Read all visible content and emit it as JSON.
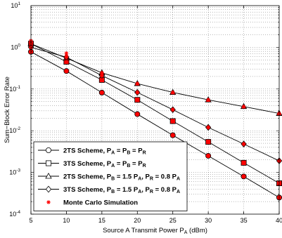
{
  "chart_data": {
    "type": "line",
    "x": [
      5,
      10,
      15,
      20,
      25,
      30,
      35,
      40
    ],
    "xlim": [
      5,
      40
    ],
    "ylim": [
      0.0001,
      10
    ],
    "yscale": "log",
    "xticks": [
      5,
      10,
      15,
      20,
      25,
      30,
      35,
      40
    ],
    "yticks": [
      {
        "value": 0.0001,
        "base": "10",
        "exp": "-4"
      },
      {
        "value": 0.001,
        "base": "10",
        "exp": "-3"
      },
      {
        "value": 0.01,
        "base": "10",
        "exp": "-2"
      },
      {
        "value": 0.1,
        "base": "10",
        "exp": "-1"
      },
      {
        "value": 1,
        "base": "10",
        "exp": "0"
      },
      {
        "value": 10,
        "base": "10",
        "exp": "1"
      }
    ],
    "xlabel": {
      "main": "Source A Transmit Power P",
      "sub": "A",
      "unit": " (dBm)"
    },
    "ylabel": "Sum−Block Error Rate",
    "grid": true,
    "legend_position": "bottom-left",
    "series": [
      {
        "marker": "circle",
        "label": {
          "prefix": "2TS Scheme, ",
          "parts": [
            [
              "P",
              "A"
            ],
            [
              " = P",
              "B"
            ],
            [
              " = P",
              "R"
            ]
          ]
        },
        "values": [
          0.78,
          0.27,
          0.082,
          0.025,
          0.0078,
          0.0025,
          0.0008,
          0.00025
        ]
      },
      {
        "marker": "square",
        "label": {
          "prefix": "3TS Scheme, ",
          "parts": [
            [
              "P",
              "A"
            ],
            [
              " = P",
              "B"
            ],
            [
              " = P",
              "R"
            ]
          ]
        },
        "values": [
          1.22,
          0.45,
          0.165,
          0.055,
          0.017,
          0.0054,
          0.0017,
          0.00055
        ]
      },
      {
        "marker": "triangle",
        "label": {
          "prefix": "2TS Scheme, ",
          "parts": [
            [
              "P",
              "B"
            ],
            [
              " = 1.5 P",
              "A"
            ],
            [
              ", P",
              "R"
            ],
            [
              " = 0.8 P",
              "A"
            ]
          ]
        },
        "values": [
          1.22,
          0.55,
          0.245,
          0.135,
          0.083,
          0.055,
          0.038,
          0.026
        ]
      },
      {
        "marker": "diamond",
        "label": {
          "prefix": "3TS Scheme, ",
          "parts": [
            [
              "P",
              "B"
            ],
            [
              " = 1.5 P",
              "A"
            ],
            [
              ", P",
              "R"
            ],
            [
              " = 0.8 P",
              "A"
            ]
          ]
        },
        "values": [
          1.0,
          0.58,
          0.21,
          0.083,
          0.032,
          0.012,
          0.0048,
          0.0019
        ]
      }
    ],
    "monte_carlo": {
      "marker": "star",
      "color": "#ff0000",
      "label": "Monte Carlo Simulation",
      "values": [
        [
          1.45,
          0.72,
          0.245,
          0.135,
          0.083,
          0.055,
          0.038,
          0.026
        ],
        [
          1.22,
          0.62,
          0.21,
          0.083,
          0.032,
          0.012,
          0.0048,
          0.0019
        ],
        [
          1.0,
          0.45,
          0.165,
          0.055,
          0.017,
          0.0054,
          0.0017,
          0.00055
        ],
        [
          0.78,
          0.27,
          0.082,
          0.025,
          0.0078,
          0.0025,
          0.0008,
          0.00025
        ]
      ]
    },
    "colors": {
      "line": "#000000",
      "marker_fill": "#ff0000",
      "monte_carlo": "#ff0000"
    }
  }
}
